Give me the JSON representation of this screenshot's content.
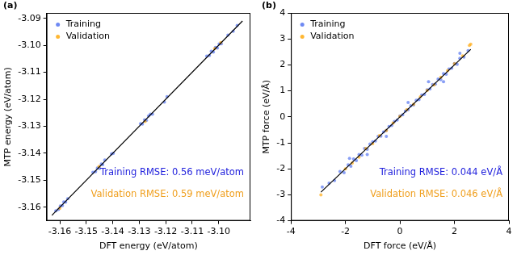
{
  "chart_data": [
    {
      "type": "scatter",
      "title": "(a)",
      "x_label": "DFT energy (eV/atom)",
      "y_label": "MTP energy (eV/atom)",
      "xlim": [
        -3.165,
        -3.088
      ],
      "xticks": [
        -3.16,
        -3.15,
        -3.14,
        -3.13,
        -3.12,
        -3.11,
        {
          "value": -3.1,
          "label": "-3.10"
        }
      ],
      "ylim": [
        -3.165,
        -3.088
      ],
      "yticks": [
        -3.16,
        -3.15,
        -3.14,
        -3.13,
        -3.12,
        -3.11,
        {
          "value": -3.1,
          "label": "-3.10"
        },
        -3.09
      ],
      "grid": false,
      "legend": "upper left",
      "series": [
        {
          "name": "Training",
          "color": "#4a6cf0",
          "marker": "circle",
          "x": [
            -3.1615,
            -3.1605,
            -3.1598,
            -3.159,
            -3.1585,
            -3.1578,
            -3.157,
            -3.1475,
            -3.1465,
            -3.1458,
            -3.145,
            -3.1443,
            -3.1438,
            -3.143,
            -3.1405,
            -3.1398,
            -3.1295,
            -3.1288,
            -3.128,
            -3.1273,
            -3.1265,
            -3.1258,
            -3.125,
            -3.1205,
            -3.1195,
            -3.1045,
            -3.1035,
            -3.1028,
            -3.102,
            -3.1012,
            -3.1005,
            -3.0998,
            -3.099,
            -3.0965,
            -3.0945,
            -3.093
          ],
          "values": [
            -3.1613,
            -3.1608,
            -3.1595,
            -3.1594,
            -3.158,
            -3.1581,
            -3.1568,
            -3.147,
            -3.1468,
            -3.1455,
            -3.1456,
            -3.144,
            -3.1442,
            -3.1425,
            -3.1402,
            -3.14,
            -3.129,
            -3.1292,
            -3.1276,
            -3.1278,
            -3.1262,
            -3.1255,
            -3.1255,
            -3.121,
            -3.119,
            -3.104,
            -3.1038,
            -3.1022,
            -3.1025,
            -3.1008,
            -3.101,
            -3.0995,
            -3.0994,
            -3.0962,
            -3.0948,
            -3.0926
          ]
        },
        {
          "name": "Validation",
          "color": "#ffa500",
          "marker": "circle",
          "x": [
            -3.16,
            -3.1452,
            -3.1278,
            -3.1015,
            -3.0992
          ],
          "values": [
            -3.1603,
            -3.1449,
            -3.1282,
            -3.1012,
            -3.099
          ]
        }
      ],
      "reference_line": {
        "x": [
          -3.163,
          -3.091
        ],
        "values": [
          -3.163,
          -3.091
        ],
        "color": "#000000"
      },
      "annotations": [
        {
          "text": "Training RMSE: 0.56 meV/atom",
          "color": "#2222dd"
        },
        {
          "text": "Validation RMSE: 0.59 meV/atom",
          "color": "#f0a020"
        }
      ]
    },
    {
      "type": "scatter",
      "title": "(b)",
      "x_label": "DFT force (eV/Å)",
      "y_label": "MTP force (eV/Å)",
      "xlim": [
        -4,
        4
      ],
      "xticks": [
        -4,
        -2,
        0,
        2,
        4
      ],
      "ylim": [
        -4,
        4
      ],
      "yticks": [
        -4,
        -3,
        -2,
        -1,
        0,
        1,
        2,
        3,
        4
      ],
      "grid": false,
      "legend": "upper left",
      "series": [
        {
          "name": "Training",
          "color": "#4a6cf0",
          "marker": "circle",
          "x": [
            -2.85,
            -2.6,
            -2.4,
            -2.2,
            -2.05,
            -1.9,
            -1.8,
            -1.7,
            -1.6,
            -1.5,
            -1.4,
            -1.3,
            -1.2,
            -1.1,
            -1.0,
            -0.9,
            -0.8,
            -0.7,
            -0.6,
            -0.5,
            -0.4,
            -0.3,
            -0.2,
            -0.1,
            0.0,
            0.1,
            0.2,
            0.3,
            0.4,
            0.5,
            0.6,
            0.7,
            0.8,
            0.9,
            1.0,
            1.1,
            1.2,
            1.3,
            1.4,
            1.5,
            1.6,
            1.7,
            1.8,
            1.9,
            2.0,
            2.1,
            2.2,
            2.35,
            2.5,
            -1.85,
            -1.2,
            -0.5,
            0.3,
            1.05,
            1.6,
            2.2
          ],
          "values": [
            -2.7,
            -2.55,
            -2.45,
            -2.1,
            -2.15,
            -1.85,
            -1.9,
            -1.62,
            -1.68,
            -1.45,
            -1.47,
            -1.22,
            -1.25,
            -1.05,
            -0.96,
            -0.93,
            -0.75,
            -0.74,
            -0.58,
            -0.52,
            -0.37,
            -0.33,
            -0.18,
            -0.12,
            0.03,
            0.08,
            0.22,
            0.27,
            0.43,
            0.46,
            0.64,
            0.66,
            0.84,
            0.86,
            1.04,
            1.07,
            1.24,
            1.26,
            1.45,
            1.43,
            1.66,
            1.64,
            1.84,
            1.87,
            2.05,
            2.02,
            2.25,
            2.3,
            2.55,
            -1.6,
            -1.45,
            -0.75,
            0.55,
            1.35,
            1.35,
            2.45
          ]
        },
        {
          "name": "Validation",
          "color": "#ffa500",
          "marker": "circle",
          "x": [
            -2.9,
            -2.0,
            -1.75,
            -1.5,
            -1.25,
            -1.0,
            -0.75,
            -0.5,
            -0.25,
            0.0,
            0.25,
            0.5,
            0.75,
            1.0,
            1.25,
            1.5,
            1.75,
            2.0,
            2.3,
            2.55,
            2.6
          ],
          "values": [
            -3.0,
            -2.0,
            -1.78,
            -1.55,
            -1.22,
            -1.03,
            -0.72,
            -0.53,
            -0.24,
            0.02,
            0.27,
            0.48,
            0.77,
            1.02,
            1.23,
            1.52,
            1.78,
            2.04,
            2.35,
            2.75,
            2.8
          ]
        }
      ],
      "reference_line": {
        "x": [
          -2.9,
          2.6
        ],
        "values": [
          -2.9,
          2.6
        ],
        "color": "#000000"
      },
      "annotations": [
        {
          "text": "Training RMSE: 0.044 eV/Å",
          "color": "#2222dd"
        },
        {
          "text": "Validation RMSE: 0.046 eV/Å",
          "color": "#f0a020"
        }
      ]
    }
  ]
}
